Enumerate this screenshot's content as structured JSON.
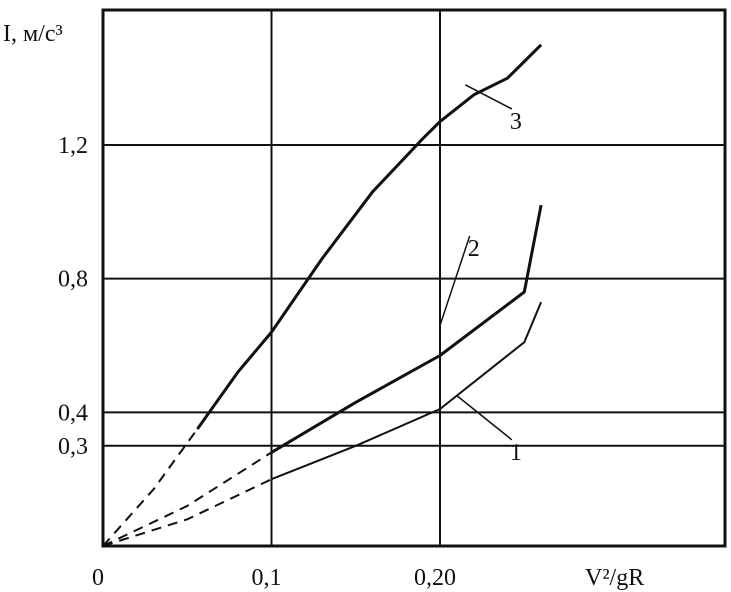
{
  "chart_data": {
    "type": "line",
    "ylabel": "I, м/с³",
    "xlabel": "V²/gR",
    "xlim": [
      0,
      0.26
    ],
    "ylim": [
      0,
      1.5
    ],
    "grid": true,
    "x_ticks": [
      {
        "value": 0,
        "label": "0"
      },
      {
        "value": 0.1,
        "label": "0,1"
      },
      {
        "value": 0.2,
        "label": "0,20"
      }
    ],
    "x_gridlines": [
      0.1,
      0.2
    ],
    "y_ticks": [
      {
        "value": 0.3,
        "label": "0,3"
      },
      {
        "value": 0.4,
        "label": "0,4"
      },
      {
        "value": 0.8,
        "label": "0,8"
      },
      {
        "value": 1.2,
        "label": "1,2"
      }
    ],
    "series": [
      {
        "name": "1",
        "x": [
          0.1,
          0.15,
          0.2,
          0.25,
          0.26
        ],
        "y": [
          0.2,
          0.3,
          0.41,
          0.61,
          0.73
        ],
        "extrapolated_x": [
          0,
          0.05,
          0.1
        ],
        "extrapolated_y": [
          0,
          0.08,
          0.2
        ]
      },
      {
        "name": "2",
        "x": [
          0.1,
          0.15,
          0.2,
          0.25,
          0.26
        ],
        "y": [
          0.28,
          0.43,
          0.57,
          0.76,
          1.02
        ],
        "extrapolated_x": [
          0,
          0.05,
          0.1
        ],
        "extrapolated_y": [
          0,
          0.12,
          0.28
        ]
      },
      {
        "name": "3",
        "x": [
          0.056,
          0.08,
          0.1,
          0.13,
          0.16,
          0.19,
          0.2,
          0.22,
          0.24,
          0.25,
          0.26
        ],
        "y": [
          0.35,
          0.52,
          0.64,
          0.86,
          1.06,
          1.22,
          1.27,
          1.35,
          1.4,
          1.45,
          1.5
        ],
        "extrapolated_x": [
          0,
          0.03,
          0.056
        ],
        "extrapolated_y": [
          0,
          0.17,
          0.35
        ]
      }
    ]
  }
}
